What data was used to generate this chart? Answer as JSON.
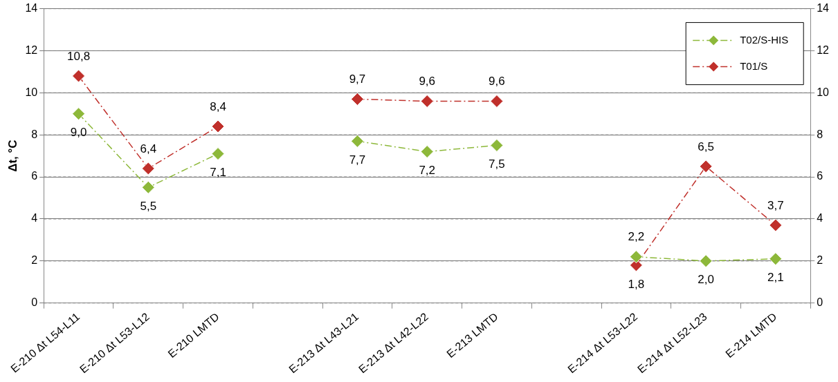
{
  "chart_data": {
    "type": "line",
    "ylabel": "Δt, °C",
    "categories": [
      "E-210 Δt L54-L11",
      "E-210 Δt L53-L12",
      "E-210 LMTD",
      null,
      "E-213 Δt L43-L21",
      "E-213 Δt L42-L22",
      "E-213 LMTD",
      null,
      "E-214 Δt L53-L22",
      "E-214 Δt L52-L23",
      "E-214 LMTD"
    ],
    "series": [
      {
        "name": "T02/S-HIS",
        "color": "#8db83a",
        "values": [
          9.0,
          5.5,
          7.1,
          null,
          7.7,
          7.2,
          7.5,
          null,
          2.2,
          2.0,
          2.1
        ],
        "value_labels": [
          "9,0",
          "5,5",
          "7,1",
          null,
          "7,7",
          "7,2",
          "7,5",
          null,
          "2,2",
          "2,0",
          "2,1"
        ]
      },
      {
        "name": "T01/S",
        "color": "#c0302b",
        "values": [
          10.8,
          6.4,
          8.4,
          null,
          9.7,
          9.6,
          9.6,
          null,
          1.8,
          6.5,
          3.7
        ],
        "value_labels": [
          "10,8",
          "6,4",
          "8,4",
          null,
          "9,7",
          "9,6",
          "9,6",
          null,
          "1,8",
          "6,5",
          "3,7"
        ]
      }
    ],
    "ylim": [
      0,
      14
    ],
    "yticks": [
      0,
      2,
      4,
      6,
      8,
      10,
      12,
      14
    ],
    "y2lim": [
      0,
      14
    ],
    "y2ticks": [
      0,
      2,
      4,
      6,
      8,
      10,
      12,
      14
    ],
    "grid": "y",
    "legend": "top right",
    "marker": "diamond",
    "line_style": "dashed"
  }
}
